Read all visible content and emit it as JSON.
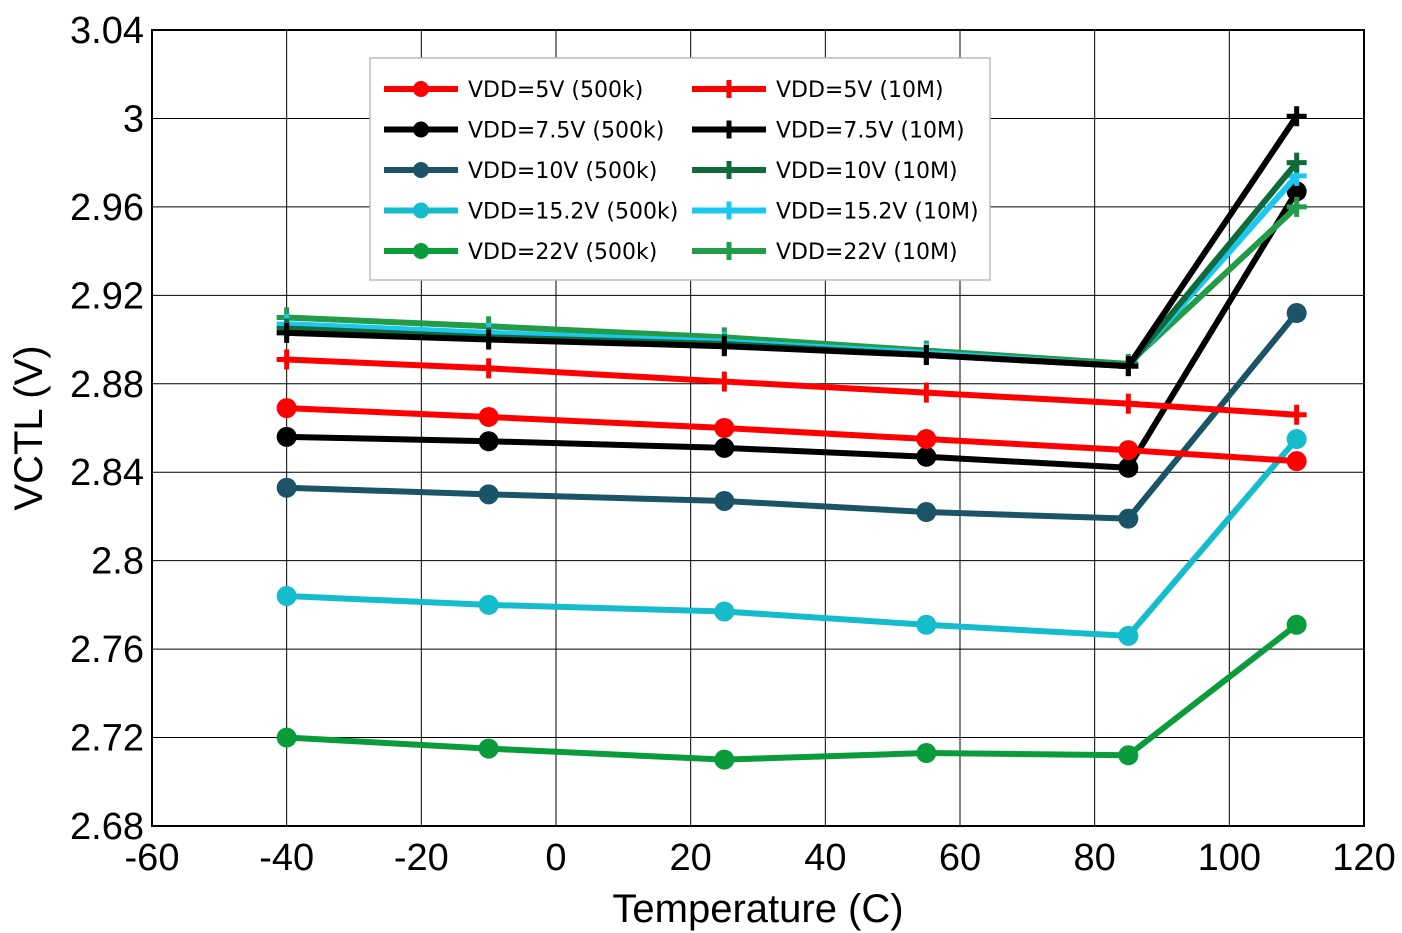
{
  "chart_data": {
    "type": "line",
    "title": "",
    "xlabel": "Temperature (C)",
    "ylabel": "VCTL (V)",
    "xlim": [
      -60,
      120
    ],
    "ylim": [
      2.68,
      3.04
    ],
    "x_ticks": [
      "-60",
      "-40",
      "-20",
      "0",
      "20",
      "40",
      "60",
      "80",
      "100",
      "120"
    ],
    "y_ticks": [
      "2.68",
      "2.72",
      "2.76",
      "2.8",
      "2.84",
      "2.88",
      "2.92",
      "2.96",
      "3",
      "3.04"
    ],
    "grid": true,
    "legend_position": "top-left",
    "x": [
      -40,
      -10,
      25,
      55,
      85,
      110
    ],
    "series": [
      {
        "name": "VDD=5V (500k)",
        "marker": "circle",
        "color": "#ff0000",
        "values": [
          2.869,
          2.865,
          2.86,
          2.855,
          2.85,
          2.845
        ]
      },
      {
        "name": "VDD=7.5V (500k)",
        "marker": "circle",
        "color": "#000000",
        "values": [
          2.856,
          2.854,
          2.851,
          2.847,
          2.842,
          2.967
        ]
      },
      {
        "name": "VDD=10V (500k)",
        "marker": "circle",
        "color": "#1a5466",
        "values": [
          2.833,
          2.83,
          2.827,
          2.822,
          2.819,
          2.912
        ]
      },
      {
        "name": "VDD=15.2V (500k)",
        "marker": "circle",
        "color": "#14bccc",
        "values": [
          2.784,
          2.78,
          2.777,
          2.771,
          2.766,
          2.855
        ]
      },
      {
        "name": "VDD=22V (500k)",
        "marker": "circle",
        "color": "#0a9b3a",
        "values": [
          2.72,
          2.715,
          2.71,
          2.713,
          2.712,
          2.771
        ]
      },
      {
        "name": "VDD=5V (10M)",
        "marker": "plus",
        "color": "#ff0000",
        "values": [
          2.891,
          2.887,
          2.881,
          2.876,
          2.871,
          2.866
        ]
      },
      {
        "name": "VDD=7.5V (10M)",
        "marker": "plus",
        "color": "#000000",
        "values": [
          2.903,
          2.9,
          2.897,
          2.893,
          2.888,
          3.001
        ]
      },
      {
        "name": "VDD=10V (10M)",
        "marker": "plus",
        "color": "#0f6b3a",
        "values": [
          2.905,
          2.901,
          2.898,
          2.893,
          2.888,
          2.98
        ]
      },
      {
        "name": "VDD=15.2V (10M)",
        "marker": "plus",
        "color": "#1cc8f2",
        "values": [
          2.907,
          2.903,
          2.899,
          2.894,
          2.888,
          2.974
        ]
      },
      {
        "name": "VDD=22V (10M)",
        "marker": "plus",
        "color": "#229c46",
        "values": [
          2.91,
          2.906,
          2.901,
          2.895,
          2.889,
          2.96
        ]
      }
    ]
  }
}
